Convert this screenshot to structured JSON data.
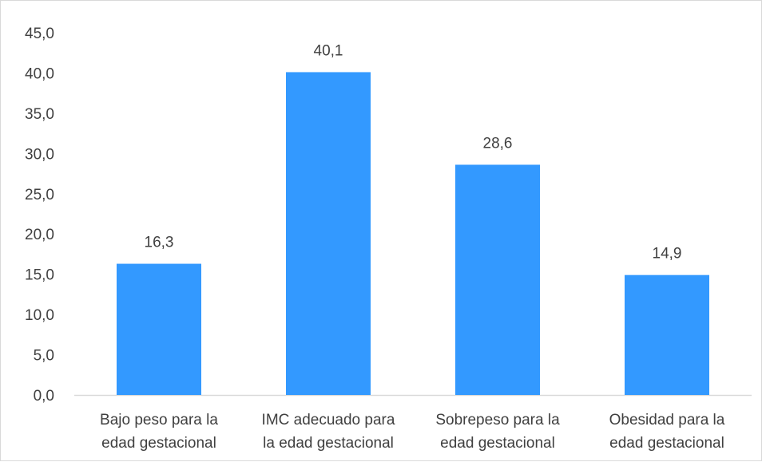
{
  "chart_data": {
    "type": "bar",
    "categories": [
      [
        "Bajo peso para la",
        "edad gestacional"
      ],
      [
        "IMC adecuado para",
        "la edad gestacional"
      ],
      [
        "Sobrepeso para la",
        "edad gestacional"
      ],
      [
        "Obesidad para la",
        "edad gestacional"
      ]
    ],
    "values": [
      16.3,
      40.1,
      28.6,
      14.9
    ],
    "value_labels": [
      "16,3",
      "40,1",
      "28,6",
      "14,9"
    ],
    "ylim": [
      0,
      45
    ],
    "yticks": [
      0,
      5,
      10,
      15,
      20,
      25,
      30,
      35,
      40,
      45
    ],
    "ytick_labels": [
      "0,0",
      "5,0",
      "10,0",
      "15,0",
      "20,0",
      "25,0",
      "30,0",
      "35,0",
      "40,0",
      "45,0"
    ],
    "grid": false,
    "legend": "none",
    "title": "",
    "xlabel": "",
    "ylabel": ""
  },
  "colors": {
    "bar": "#3399ff",
    "axis": "#d9d9d9",
    "text": "#404040"
  }
}
